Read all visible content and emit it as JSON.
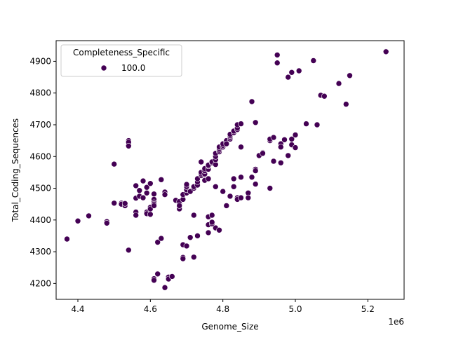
{
  "colors": {
    "point_fill": "#440154",
    "point_stroke": "#ffffff",
    "axis": "#000000",
    "legend_border": "#cccccc",
    "background": "#ffffff"
  },
  "chart_data": {
    "type": "scatter",
    "title": "",
    "xlabel": "Genome_Size",
    "ylabel": "Total_Coding_Sequences",
    "x_offset_label": "1e6",
    "x_scale": 1000000,
    "xlim": [
      4.34,
      5.3
    ],
    "ylim": [
      4150,
      4965
    ],
    "x_ticks": [
      4.4,
      4.6,
      4.8,
      5.0,
      5.2
    ],
    "x_tick_labels": [
      "4.4",
      "4.6",
      "4.8",
      "5.0",
      "5.2"
    ],
    "y_ticks": [
      4200,
      4300,
      4400,
      4500,
      4600,
      4700,
      4800,
      4900
    ],
    "y_tick_labels": [
      "4200",
      "4300",
      "4400",
      "4500",
      "4600",
      "4700",
      "4800",
      "4900"
    ],
    "grid": false,
    "legend": {
      "title": "Completeness_Specific",
      "entries": [
        "100.0"
      ],
      "placement": "upper-left"
    },
    "series": [
      {
        "name": "100.0",
        "points": [
          [
            4.37,
            4340
          ],
          [
            4.4,
            4397
          ],
          [
            4.43,
            4413
          ],
          [
            4.48,
            4395
          ],
          [
            4.48,
            4390
          ],
          [
            4.5,
            4453
          ],
          [
            4.5,
            4576
          ],
          [
            4.52,
            4453
          ],
          [
            4.52,
            4450
          ],
          [
            4.53,
            4445
          ],
          [
            4.53,
            4452
          ],
          [
            4.54,
            4305
          ],
          [
            4.54,
            4650
          ],
          [
            4.54,
            4645
          ],
          [
            4.54,
            4633
          ],
          [
            4.56,
            4508
          ],
          [
            4.56,
            4469
          ],
          [
            4.56,
            4425
          ],
          [
            4.56,
            4415
          ],
          [
            4.57,
            4475
          ],
          [
            4.57,
            4493
          ],
          [
            4.58,
            4523
          ],
          [
            4.58,
            4470
          ],
          [
            4.59,
            4503
          ],
          [
            4.59,
            4485
          ],
          [
            4.59,
            4425
          ],
          [
            4.59,
            4420
          ],
          [
            4.6,
            4418
          ],
          [
            4.6,
            4515
          ],
          [
            4.6,
            4440
          ],
          [
            4.6,
            4435
          ],
          [
            4.61,
            4465
          ],
          [
            4.61,
            4455
          ],
          [
            4.61,
            4450
          ],
          [
            4.61,
            4445
          ],
          [
            4.61,
            4482
          ],
          [
            4.61,
            4215
          ],
          [
            4.61,
            4210
          ],
          [
            4.62,
            4330
          ],
          [
            4.62,
            4230
          ],
          [
            4.63,
            4527
          ],
          [
            4.63,
            4342
          ],
          [
            4.64,
            4187
          ],
          [
            4.64,
            4488
          ],
          [
            4.64,
            4480
          ],
          [
            4.65,
            4220
          ],
          [
            4.65,
            4214
          ],
          [
            4.66,
            4222
          ],
          [
            4.67,
            4462
          ],
          [
            4.68,
            4440
          ],
          [
            4.68,
            4435
          ],
          [
            4.68,
            4450
          ],
          [
            4.68,
            4458
          ],
          [
            4.68,
            4445
          ],
          [
            4.69,
            4465
          ],
          [
            4.69,
            4322
          ],
          [
            4.69,
            4282
          ],
          [
            4.69,
            4278
          ],
          [
            4.69,
            4465
          ],
          [
            4.69,
            4480
          ],
          [
            4.7,
            4318
          ],
          [
            4.7,
            4485
          ],
          [
            4.7,
            4495
          ],
          [
            4.7,
            4505
          ],
          [
            4.7,
            4512
          ],
          [
            4.71,
            4345
          ],
          [
            4.71,
            4490
          ],
          [
            4.72,
            4283
          ],
          [
            4.72,
            4500
          ],
          [
            4.72,
            4505
          ],
          [
            4.72,
            4415
          ],
          [
            4.73,
            4510
          ],
          [
            4.73,
            4520
          ],
          [
            4.73,
            4530
          ],
          [
            4.73,
            4350
          ],
          [
            4.74,
            4540
          ],
          [
            4.74,
            4545
          ],
          [
            4.74,
            4550
          ],
          [
            4.74,
            4583
          ],
          [
            4.75,
            4545
          ],
          [
            4.75,
            4525
          ],
          [
            4.75,
            4555
          ],
          [
            4.75,
            4562
          ],
          [
            4.76,
            4560
          ],
          [
            4.76,
            4570
          ],
          [
            4.76,
            4573
          ],
          [
            4.76,
            4530
          ],
          [
            4.76,
            4410
          ],
          [
            4.76,
            4385
          ],
          [
            4.76,
            4360
          ],
          [
            4.77,
            4388
          ],
          [
            4.77,
            4415
          ],
          [
            4.77,
            4393
          ],
          [
            4.77,
            4580
          ],
          [
            4.77,
            4583
          ],
          [
            4.78,
            4575
          ],
          [
            4.78,
            4590
          ],
          [
            4.78,
            4600
          ],
          [
            4.78,
            4505
          ],
          [
            4.78,
            4375
          ],
          [
            4.78,
            4610
          ],
          [
            4.79,
            4615
          ],
          [
            4.79,
            4620
          ],
          [
            4.79,
            4625
          ],
          [
            4.79,
            4630
          ],
          [
            4.79,
            4368
          ],
          [
            4.8,
            4490
          ],
          [
            4.8,
            4630
          ],
          [
            4.8,
            4635
          ],
          [
            4.8,
            4640
          ],
          [
            4.81,
            4645
          ],
          [
            4.81,
            4650
          ],
          [
            4.81,
            4445
          ],
          [
            4.81,
            4640
          ],
          [
            4.82,
            4655
          ],
          [
            4.82,
            4660
          ],
          [
            4.82,
            4665
          ],
          [
            4.82,
            4670
          ],
          [
            4.82,
            4475
          ],
          [
            4.83,
            4675
          ],
          [
            4.83,
            4680
          ],
          [
            4.83,
            4530
          ],
          [
            4.83,
            4505
          ],
          [
            4.84,
            4685
          ],
          [
            4.84,
            4690
          ],
          [
            4.84,
            4700
          ],
          [
            4.84,
            4470
          ],
          [
            4.84,
            4465
          ],
          [
            4.85,
            4703
          ],
          [
            4.85,
            4630
          ],
          [
            4.85,
            4535
          ],
          [
            4.85,
            4470
          ],
          [
            4.87,
            4485
          ],
          [
            4.87,
            4470
          ],
          [
            4.88,
            4773
          ],
          [
            4.88,
            4535
          ],
          [
            4.89,
            4707
          ],
          [
            4.89,
            4560
          ],
          [
            4.89,
            4555
          ],
          [
            4.89,
            4513
          ],
          [
            4.9,
            4603
          ],
          [
            4.91,
            4612
          ],
          [
            4.91,
            4610
          ],
          [
            4.93,
            4500
          ],
          [
            4.93,
            4650
          ],
          [
            4.93,
            4655
          ],
          [
            4.94,
            4660
          ],
          [
            4.94,
            4585
          ],
          [
            4.95,
            4920
          ],
          [
            4.95,
            4895
          ],
          [
            4.96,
            4580
          ],
          [
            4.96,
            4640
          ],
          [
            4.96,
            4630
          ],
          [
            4.97,
            4653
          ],
          [
            4.98,
            4850
          ],
          [
            4.98,
            4603
          ],
          [
            4.99,
            4865
          ],
          [
            4.99,
            4637
          ],
          [
            4.99,
            4655
          ],
          [
            5.0,
            4668
          ],
          [
            5.0,
            4628
          ],
          [
            5.01,
            4870
          ],
          [
            5.03,
            4703
          ],
          [
            5.05,
            4902
          ],
          [
            5.06,
            4700
          ],
          [
            5.07,
            4793
          ],
          [
            5.08,
            4790
          ],
          [
            5.12,
            4830
          ],
          [
            5.14,
            4765
          ],
          [
            5.15,
            4855
          ],
          [
            5.25,
            4930
          ]
        ]
      }
    ]
  }
}
